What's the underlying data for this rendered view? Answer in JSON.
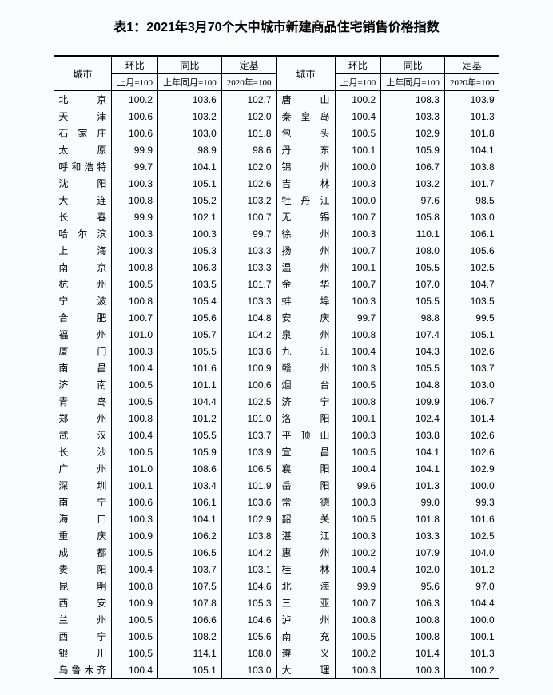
{
  "title": "表1：2021年3月70个大中城市新建商品住宅销售价格指数",
  "headers": {
    "city": "城市",
    "mom": "环比",
    "yoy": "同比",
    "base": "定基",
    "mom_sub": "上月=100",
    "yoy_sub": "上年同月=100",
    "base_sub": "2020年=100"
  },
  "left": [
    {
      "city": "北　　京",
      "mom": "100.2",
      "yoy": "103.6",
      "base": "102.7"
    },
    {
      "city": "天　　津",
      "mom": "100.6",
      "yoy": "103.2",
      "base": "102.0"
    },
    {
      "city": "石 家 庄",
      "mom": "100.6",
      "yoy": "103.0",
      "base": "101.8"
    },
    {
      "city": "太　　原",
      "mom": "99.9",
      "yoy": "98.9",
      "base": "98.6"
    },
    {
      "city": "呼和浩特",
      "mom": "99.7",
      "yoy": "104.1",
      "base": "102.0"
    },
    {
      "city": "沈　　阳",
      "mom": "100.3",
      "yoy": "105.1",
      "base": "102.6"
    },
    {
      "city": "大　　连",
      "mom": "100.8",
      "yoy": "105.2",
      "base": "103.2"
    },
    {
      "city": "长　　春",
      "mom": "99.9",
      "yoy": "102.1",
      "base": "100.7"
    },
    {
      "city": "哈 尔 滨",
      "mom": "100.3",
      "yoy": "100.3",
      "base": "99.7"
    },
    {
      "city": "上　　海",
      "mom": "100.3",
      "yoy": "105.3",
      "base": "103.3"
    },
    {
      "city": "南　　京",
      "mom": "100.8",
      "yoy": "106.3",
      "base": "103.3"
    },
    {
      "city": "杭　　州",
      "mom": "100.5",
      "yoy": "103.5",
      "base": "101.7"
    },
    {
      "city": "宁　　波",
      "mom": "100.8",
      "yoy": "105.4",
      "base": "103.3"
    },
    {
      "city": "合　　肥",
      "mom": "100.7",
      "yoy": "105.6",
      "base": "104.8"
    },
    {
      "city": "福　　州",
      "mom": "101.0",
      "yoy": "105.7",
      "base": "104.2"
    },
    {
      "city": "厦　　门",
      "mom": "100.3",
      "yoy": "105.5",
      "base": "103.6"
    },
    {
      "city": "南　　昌",
      "mom": "100.4",
      "yoy": "101.6",
      "base": "100.9"
    },
    {
      "city": "济　　南",
      "mom": "100.5",
      "yoy": "101.1",
      "base": "100.6"
    },
    {
      "city": "青　　岛",
      "mom": "100.5",
      "yoy": "104.4",
      "base": "102.5"
    },
    {
      "city": "郑　　州",
      "mom": "100.8",
      "yoy": "101.2",
      "base": "101.0"
    },
    {
      "city": "武　　汉",
      "mom": "100.4",
      "yoy": "105.5",
      "base": "103.7"
    },
    {
      "city": "长　　沙",
      "mom": "100.5",
      "yoy": "105.9",
      "base": "103.9"
    },
    {
      "city": "广　　州",
      "mom": "101.0",
      "yoy": "108.6",
      "base": "106.5"
    },
    {
      "city": "深　　圳",
      "mom": "100.1",
      "yoy": "103.4",
      "base": "101.9"
    },
    {
      "city": "南　　宁",
      "mom": "100.6",
      "yoy": "106.1",
      "base": "103.6"
    },
    {
      "city": "海　　口",
      "mom": "100.3",
      "yoy": "104.1",
      "base": "102.9"
    },
    {
      "city": "重　　庆",
      "mom": "100.9",
      "yoy": "106.2",
      "base": "103.8"
    },
    {
      "city": "成　　都",
      "mom": "100.5",
      "yoy": "106.5",
      "base": "104.2"
    },
    {
      "city": "贵　　阳",
      "mom": "100.4",
      "yoy": "103.7",
      "base": "103.1"
    },
    {
      "city": "昆　　明",
      "mom": "100.8",
      "yoy": "107.5",
      "base": "104.6"
    },
    {
      "city": "西　　安",
      "mom": "100.9",
      "yoy": "107.8",
      "base": "105.3"
    },
    {
      "city": "兰　　州",
      "mom": "100.5",
      "yoy": "106.6",
      "base": "104.6"
    },
    {
      "city": "西　　宁",
      "mom": "100.5",
      "yoy": "108.2",
      "base": "105.6"
    },
    {
      "city": "银　　川",
      "mom": "100.5",
      "yoy": "114.1",
      "base": "108.0"
    },
    {
      "city": "乌鲁木齐",
      "mom": "100.4",
      "yoy": "105.1",
      "base": "103.0"
    }
  ],
  "right": [
    {
      "city": "唐　　山",
      "mom": "100.2",
      "yoy": "108.3",
      "base": "103.9"
    },
    {
      "city": "秦 皇 岛",
      "mom": "100.4",
      "yoy": "103.3",
      "base": "101.3"
    },
    {
      "city": "包　　头",
      "mom": "100.5",
      "yoy": "102.9",
      "base": "101.8"
    },
    {
      "city": "丹　　东",
      "mom": "100.1",
      "yoy": "105.9",
      "base": "104.1"
    },
    {
      "city": "锦　　州",
      "mom": "100.0",
      "yoy": "106.7",
      "base": "103.8"
    },
    {
      "city": "吉　　林",
      "mom": "100.3",
      "yoy": "103.2",
      "base": "101.7"
    },
    {
      "city": "牡 丹 江",
      "mom": "100.0",
      "yoy": "97.6",
      "base": "98.5"
    },
    {
      "city": "无　　锡",
      "mom": "100.7",
      "yoy": "105.8",
      "base": "103.0"
    },
    {
      "city": "徐　　州",
      "mom": "100.3",
      "yoy": "110.1",
      "base": "106.1"
    },
    {
      "city": "扬　　州",
      "mom": "100.7",
      "yoy": "108.0",
      "base": "105.6"
    },
    {
      "city": "温　　州",
      "mom": "100.1",
      "yoy": "105.5",
      "base": "102.5"
    },
    {
      "city": "金　　华",
      "mom": "100.7",
      "yoy": "107.0",
      "base": "104.7"
    },
    {
      "city": "蚌　　埠",
      "mom": "100.3",
      "yoy": "105.5",
      "base": "103.5"
    },
    {
      "city": "安　　庆",
      "mom": "99.7",
      "yoy": "98.8",
      "base": "99.5"
    },
    {
      "city": "泉　　州",
      "mom": "100.8",
      "yoy": "107.4",
      "base": "105.1"
    },
    {
      "city": "九　　江",
      "mom": "100.4",
      "yoy": "104.3",
      "base": "102.6"
    },
    {
      "city": "赣　　州",
      "mom": "100.3",
      "yoy": "105.5",
      "base": "103.7"
    },
    {
      "city": "烟　　台",
      "mom": "100.5",
      "yoy": "104.8",
      "base": "103.0"
    },
    {
      "city": "济　　宁",
      "mom": "100.8",
      "yoy": "109.9",
      "base": "106.7"
    },
    {
      "city": "洛　　阳",
      "mom": "100.1",
      "yoy": "102.4",
      "base": "101.4"
    },
    {
      "city": "平 顶 山",
      "mom": "100.3",
      "yoy": "103.8",
      "base": "102.6"
    },
    {
      "city": "宜　　昌",
      "mom": "100.5",
      "yoy": "104.1",
      "base": "102.6"
    },
    {
      "city": "襄　　阳",
      "mom": "100.4",
      "yoy": "104.1",
      "base": "102.9"
    },
    {
      "city": "岳　　阳",
      "mom": "99.6",
      "yoy": "101.3",
      "base": "100.0"
    },
    {
      "city": "常　　德",
      "mom": "100.3",
      "yoy": "99.0",
      "base": "99.3"
    },
    {
      "city": "韶　　关",
      "mom": "100.5",
      "yoy": "101.8",
      "base": "101.6"
    },
    {
      "city": "湛　　江",
      "mom": "100.3",
      "yoy": "103.3",
      "base": "102.5"
    },
    {
      "city": "惠　　州",
      "mom": "100.2",
      "yoy": "107.9",
      "base": "104.0"
    },
    {
      "city": "桂　　林",
      "mom": "100.4",
      "yoy": "102.0",
      "base": "101.2"
    },
    {
      "city": "北　　海",
      "mom": "99.9",
      "yoy": "95.6",
      "base": "97.0"
    },
    {
      "city": "三　　亚",
      "mom": "100.7",
      "yoy": "106.3",
      "base": "104.4"
    },
    {
      "city": "泸　　州",
      "mom": "100.8",
      "yoy": "100.8",
      "base": "100.0"
    },
    {
      "city": "南　　充",
      "mom": "100.5",
      "yoy": "100.8",
      "base": "100.1"
    },
    {
      "city": "遵　　义",
      "mom": "100.2",
      "yoy": "101.4",
      "base": "101.3"
    },
    {
      "city": "大　　理",
      "mom": "100.3",
      "yoy": "100.3",
      "base": "100.2"
    }
  ],
  "style": {
    "background_color": "#fafbfd",
    "text_color": "#000000",
    "title_fontsize": 16,
    "body_fontsize": 12
  }
}
